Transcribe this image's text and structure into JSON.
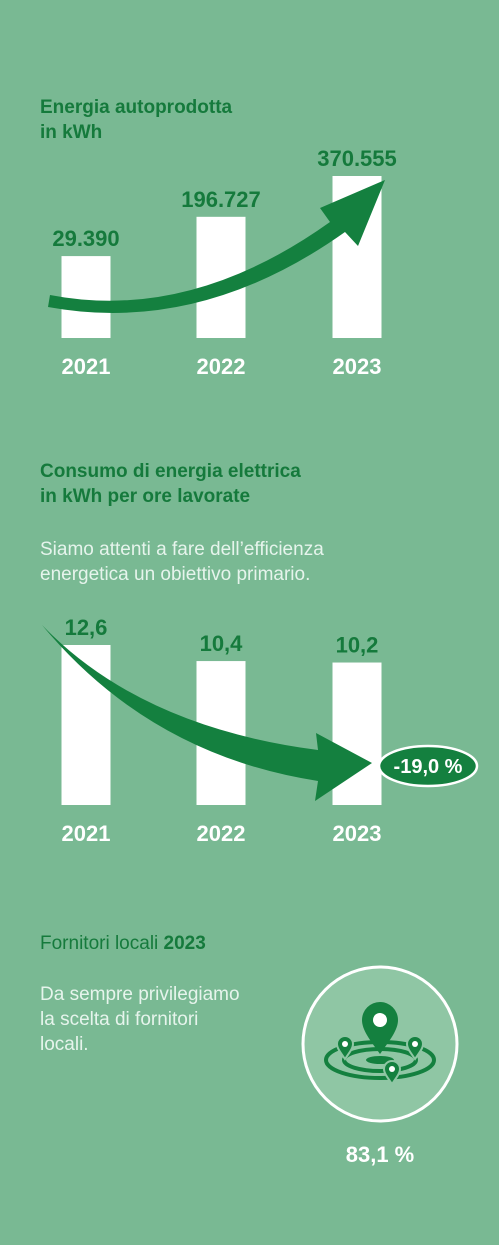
{
  "section1": {
    "title_line1": "Energia autoprodotta",
    "title_line2": "in kWh"
  },
  "section2": {
    "title_line1": "Consumo di energia elettrica",
    "title_line2": "in kWh per ore lavorate",
    "desc_line1": "Siamo attenti a fare dell’efficienza",
    "desc_line2": "energetica un obiettivo primario.",
    "badge": "-19,0 %"
  },
  "section3": {
    "title": "Fornitori locali",
    "title_year": "2023",
    "desc_line1": "Da sempre privilegiamo",
    "desc_line2": "la scelta di fornitori",
    "desc_line3": "locali.",
    "percent": "83,1 %",
    "icon": "location-pins-icon"
  },
  "colors": {
    "background": "#79b993",
    "accent": "#157a3c",
    "bar": "#ffffff"
  },
  "chart_data": [
    {
      "type": "bar",
      "categories": [
        "2021",
        "2022",
        "2023"
      ],
      "values": [
        29390,
        196727,
        370555
      ],
      "value_labels": [
        "29.390",
        "196.727",
        "370.555"
      ]
    },
    {
      "type": "bar",
      "categories": [
        "2021",
        "2022",
        "2023"
      ],
      "values": [
        12.6,
        10.4,
        10.2
      ],
      "value_labels": [
        "12,6",
        "10,4",
        "10,2"
      ]
    }
  ]
}
